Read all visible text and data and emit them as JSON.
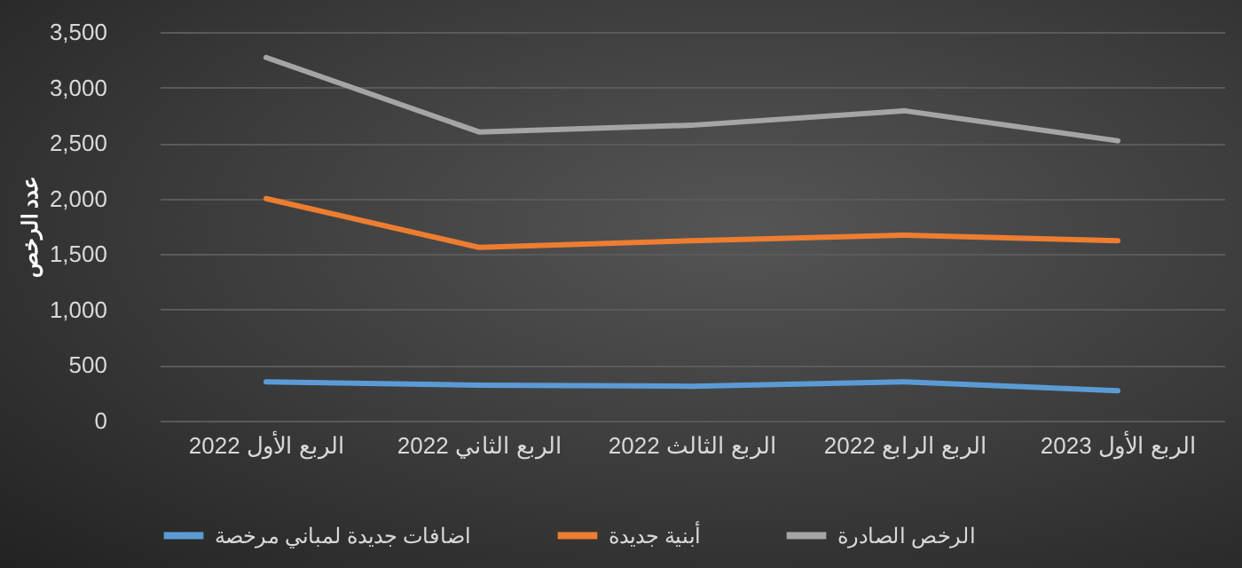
{
  "chart_data": {
    "type": "line",
    "ylabel": "عدد الرخص",
    "categories": [
      "الربع الأول 2022",
      "الربع الثاني 2022",
      "الربع الثالث 2022",
      "الربع الرابع 2022",
      "الربع الأول 2023"
    ],
    "series": [
      {
        "name": "اضافات جديدة لمباني مرخصة",
        "color": "#5b9bd5",
        "values": [
          350,
          320,
          310,
          350,
          270
        ]
      },
      {
        "name": "أبنية جديدة",
        "color": "#ed7d31",
        "values": [
          2000,
          1560,
          1620,
          1670,
          1620
        ]
      },
      {
        "name": "الرخص الصادرة",
        "color": "#a5a5a5",
        "values": [
          3270,
          2600,
          2660,
          2790,
          2520
        ]
      }
    ],
    "ylim": [
      0,
      3500
    ],
    "yticks": [
      0,
      {
        "value": 500,
        "label": "500"
      },
      {
        "value": 1000,
        "label": "1,000"
      },
      {
        "value": 1500,
        "label": "1,500"
      },
      {
        "value": 2000,
        "label": "2,000"
      },
      {
        "value": 2500,
        "label": "2,500"
      },
      {
        "value": 3000,
        "label": "3,000"
      },
      {
        "value": 3500,
        "label": "3,500"
      }
    ],
    "grid": "y",
    "legend": "bottom",
    "marker": "none",
    "line_style": "solid"
  }
}
